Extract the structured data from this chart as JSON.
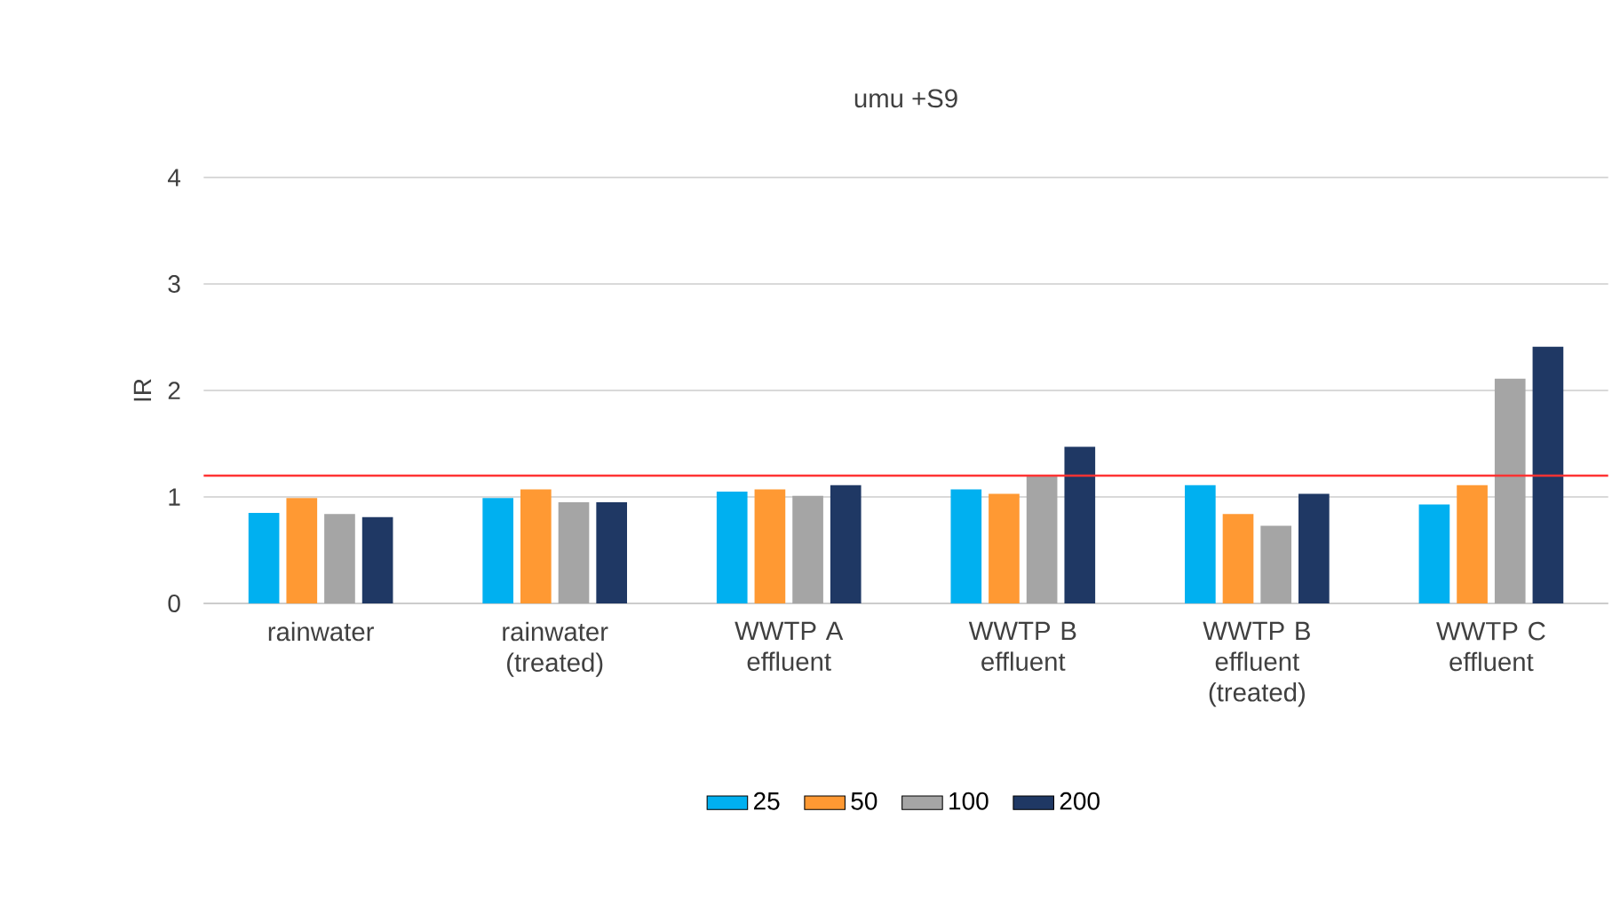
{
  "chart_data": {
    "type": "bar",
    "title": "umu +S9",
    "ylabel": "IR",
    "categories": [
      "rainwater",
      "rainwater (treated)",
      "WWTP A effluent",
      "WWTP B effluent",
      "WWTP B effluent (treated)",
      "WWTP C effluent"
    ],
    "series": [
      {
        "name": "25",
        "color": "#00b0f0",
        "values": [
          0.85,
          0.99,
          1.05,
          1.07,
          1.11,
          0.93
        ]
      },
      {
        "name": "50",
        "color": "#ff9933",
        "values": [
          0.99,
          1.07,
          1.07,
          1.03,
          0.84,
          1.11
        ]
      },
      {
        "name": "100",
        "color": "#a5a5a5",
        "values": [
          0.84,
          0.95,
          1.01,
          1.2,
          0.73,
          2.11
        ]
      },
      {
        "name": "200",
        "color": "#1f3864",
        "values": [
          0.81,
          0.95,
          1.11,
          1.47,
          1.03,
          2.41
        ]
      }
    ],
    "ylim": [
      0,
      4
    ],
    "yticks": [
      0,
      1,
      2,
      3,
      4
    ],
    "grid": "y",
    "legend": "bottom",
    "ref_lines": [
      {
        "axis": "y",
        "value": 1.2,
        "color": "#ff3333"
      }
    ]
  }
}
